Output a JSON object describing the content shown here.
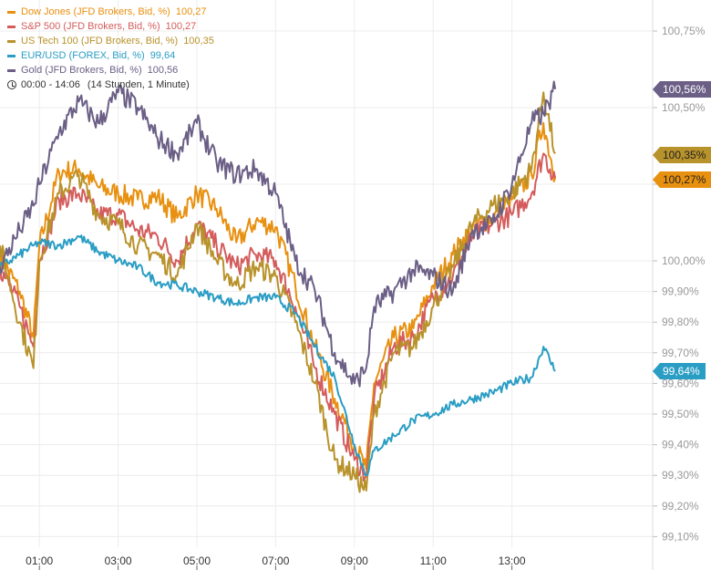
{
  "legend": {
    "items": [
      {
        "label": "Dow Jones (JFD Brokers, Bid, %)",
        "value": "100,27",
        "color": "#e8900f"
      },
      {
        "label": "S&P 500 (JFD Brokers, Bid, %)",
        "value": "100,27",
        "color": "#d45c5c"
      },
      {
        "label": "US Tech 100 (JFD Brokers, Bid, %)",
        "value": "100,35",
        "color": "#b8922a"
      },
      {
        "label": "EUR/USD (FOREX, Bid, %)",
        "value": "99,64",
        "color": "#2a9dc4"
      },
      {
        "label": "Gold (JFD Brokers, Bid, %)",
        "value": "100,56",
        "color": "#6b5f86"
      }
    ],
    "time_range": "00:00 - 14:06",
    "duration": "(14 Stunden, 1 Minute)"
  },
  "chart_data": {
    "type": "line",
    "xlabel": "",
    "ylabel": "",
    "xlim": [
      0,
      14.1
    ],
    "ylim": [
      99.05,
      100.85
    ],
    "x_ticks": [
      {
        "v": 1,
        "label": "01:00"
      },
      {
        "v": 3,
        "label": "03:00"
      },
      {
        "v": 5,
        "label": "05:00"
      },
      {
        "v": 7,
        "label": "07:00"
      },
      {
        "v": 9,
        "label": "09:00"
      },
      {
        "v": 11,
        "label": "11:00"
      },
      {
        "v": 13,
        "label": "13:00"
      }
    ],
    "y_ticks": [
      {
        "v": 100.75,
        "label": "100,75%"
      },
      {
        "v": 100.5,
        "label": "100,50%"
      },
      {
        "v": 100.25,
        "label": ""
      },
      {
        "v": 100,
        "label": "100,00%"
      },
      {
        "v": 99.9,
        "label": "99,90%"
      },
      {
        "v": 99.8,
        "label": "99,80%"
      },
      {
        "v": 99.7,
        "label": "99,70%"
      },
      {
        "v": 99.6,
        "label": "99,60%"
      },
      {
        "v": 99.5,
        "label": "99,50%"
      },
      {
        "v": 99.4,
        "label": "99,40%"
      },
      {
        "v": 99.3,
        "label": "99,30%"
      },
      {
        "v": 99.2,
        "label": "99,20%"
      },
      {
        "v": 99.1,
        "label": "99,10%"
      }
    ],
    "x": [
      0,
      0.5,
      0.85,
      1,
      1.5,
      2,
      2.5,
      3,
      3.5,
      4,
      4.5,
      5,
      5.5,
      6,
      6.5,
      7,
      7.5,
      8,
      8.5,
      9,
      9.3,
      9.5,
      10,
      10.5,
      11,
      11.5,
      12,
      12.5,
      13,
      13.5,
      13.8,
      14.1
    ],
    "series": [
      {
        "name": "Dow Jones",
        "color": "#e8900f",
        "last": "100,27%",
        "values": [
          100.02,
          99.9,
          99.75,
          100.05,
          100.29,
          100.3,
          100.24,
          100.22,
          100.2,
          100.21,
          100.14,
          100.22,
          100.17,
          100.06,
          100.13,
          100.11,
          99.92,
          99.72,
          99.55,
          99.4,
          99.32,
          99.6,
          99.75,
          99.78,
          99.92,
          100.02,
          100.11,
          100.14,
          100.2,
          100.28,
          100.45,
          100.27
        ]
      },
      {
        "name": "S&P 500",
        "color": "#d45c5c",
        "last": "",
        "values": [
          99.98,
          99.85,
          99.72,
          100.0,
          100.2,
          100.22,
          100.15,
          100.15,
          100.1,
          100.08,
          100.0,
          100.12,
          100.05,
          99.98,
          100.02,
          100.0,
          99.85,
          99.65,
          99.5,
          99.35,
          99.3,
          99.55,
          99.72,
          99.75,
          99.88,
          99.95,
          100.08,
          100.12,
          100.15,
          100.22,
          100.35,
          100.27
        ]
      },
      {
        "name": "US Tech 100",
        "color": "#b8922a",
        "last": "100,35%",
        "values": [
          100.05,
          99.8,
          99.65,
          100.0,
          100.22,
          100.28,
          100.15,
          100.12,
          100.05,
          100.02,
          99.95,
          100.12,
          100.0,
          99.92,
          99.98,
          99.95,
          99.8,
          99.6,
          99.35,
          99.3,
          99.25,
          99.5,
          99.7,
          99.72,
          99.85,
          99.98,
          100.12,
          100.18,
          100.22,
          100.3,
          100.55,
          100.35
        ]
      },
      {
        "name": "EUR/USD",
        "color": "#2a9dc4",
        "last": "99,64%",
        "values": [
          99.98,
          100.02,
          100.05,
          100.06,
          100.05,
          100.08,
          100.03,
          100.0,
          99.98,
          99.93,
          99.92,
          99.9,
          99.88,
          99.86,
          99.88,
          99.88,
          99.83,
          99.72,
          99.62,
          99.4,
          99.3,
          99.38,
          99.43,
          99.48,
          99.5,
          99.53,
          99.55,
          99.57,
          99.6,
          99.62,
          99.72,
          99.64
        ]
      },
      {
        "name": "Gold",
        "color": "#6b5f86",
        "last": "100,56%",
        "values": [
          99.98,
          100.1,
          100.18,
          100.25,
          100.42,
          100.52,
          100.45,
          100.55,
          100.5,
          100.4,
          100.35,
          100.45,
          100.32,
          100.28,
          100.3,
          100.22,
          100.0,
          99.9,
          99.7,
          99.6,
          99.65,
          99.85,
          99.9,
          99.97,
          99.95,
          99.9,
          100.1,
          100.12,
          100.25,
          100.45,
          100.48,
          100.56
        ]
      }
    ]
  }
}
